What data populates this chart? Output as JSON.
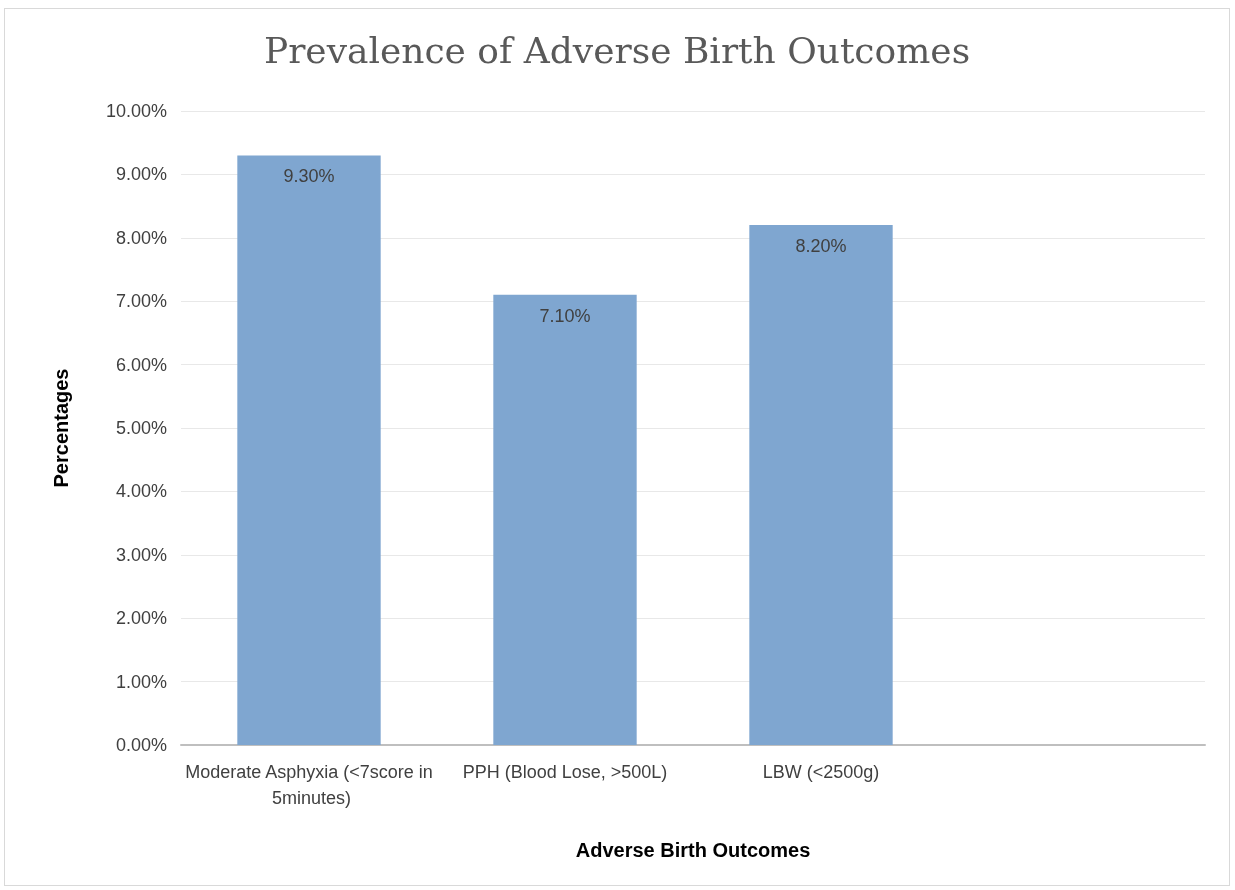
{
  "chart_data": {
    "type": "bar",
    "title": "Prevalence of Adverse Birth Outcomes",
    "xlabel": "Adverse Birth Outcomes",
    "ylabel": "Percentages",
    "categories": [
      "Moderate Asphyxia (<7score in 5minutes)",
      "PPH (Blood Lose, >500L)",
      "LBW (<2500g)",
      null
    ],
    "values": [
      9.3,
      7.1,
      8.2,
      null
    ],
    "value_labels": [
      "9.30%",
      "7.10%",
      "8.20%",
      null
    ],
    "color": "#7fa6d0",
    "ylim": [
      0,
      10
    ],
    "yticks": [
      {
        "value": 0,
        "label": "0.00%"
      },
      {
        "value": 1,
        "label": "1.00%"
      },
      {
        "value": 2,
        "label": "2.00%"
      },
      {
        "value": 3,
        "label": "3.00%"
      },
      {
        "value": 4,
        "label": "4.00%"
      },
      {
        "value": 5,
        "label": "5.00%"
      },
      {
        "value": 6,
        "label": "6.00%"
      },
      {
        "value": 7,
        "label": "7.00%"
      },
      {
        "value": 8,
        "label": "8.00%"
      },
      {
        "value": 9,
        "label": "9.00%"
      },
      {
        "value": 10,
        "label": "10.00%"
      }
    ],
    "grid": "y"
  }
}
